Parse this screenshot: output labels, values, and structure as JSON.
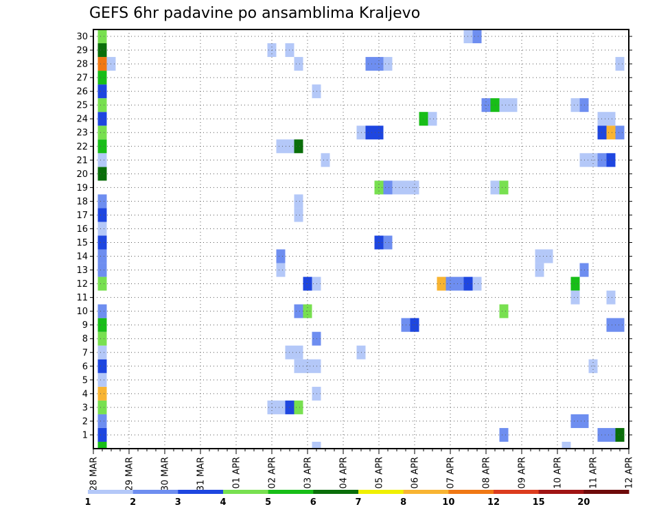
{
  "chart_data": {
    "type": "heatmap",
    "title": "GEFS 6hr padavine po ansamblima Kraljevo",
    "xlabel": "",
    "ylabel": "",
    "x_tick_labels": [
      "28 MAR",
      "29 MAR",
      "30 MAR",
      "31 MAR",
      "01 APR",
      "02 APR",
      "03 APR",
      "04 APR",
      "05 APR",
      "06 APR",
      "07 APR",
      "08 APR",
      "09 APR",
      "10 APR",
      "11 APR",
      "12 APR"
    ],
    "y_tick_labels": [
      "1",
      "2",
      "3",
      "4",
      "5",
      "6",
      "7",
      "8",
      "9",
      "10",
      "11",
      "12",
      "13",
      "14",
      "15",
      "16",
      "17",
      "18",
      "19",
      "20",
      "21",
      "22",
      "23",
      "24",
      "25",
      "26",
      "27",
      "28",
      "29",
      "30"
    ],
    "time_step_hours": 6,
    "grid": true,
    "colorbar": {
      "position": "bottom",
      "colors": [
        "#b4c8f8",
        "#6e8ef0",
        "#1e46e0",
        "#78e050",
        "#18be18",
        "#0a6e0a",
        "#f0f000",
        "#f8b432",
        "#f07814",
        "#dc3c1e",
        "#a01414",
        "#6e0a0a"
      ],
      "labels": [
        "1",
        "2",
        "3",
        "4",
        "5",
        "6",
        "7",
        "8",
        "10",
        "12",
        "15",
        "20"
      ]
    },
    "points": [
      {
        "x": 0.25,
        "y": 0,
        "c": 4
      },
      {
        "x": 0.25,
        "y": 1,
        "c": 2
      },
      {
        "x": 0.25,
        "y": 2,
        "c": 1
      },
      {
        "x": 0.25,
        "y": 3,
        "c": 3
      },
      {
        "x": 0.25,
        "y": 4,
        "c": 7
      },
      {
        "x": 0.25,
        "y": 5,
        "c": 0
      },
      {
        "x": 0.25,
        "y": 6,
        "c": 2
      },
      {
        "x": 0.25,
        "y": 7,
        "c": 0
      },
      {
        "x": 0.25,
        "y": 8,
        "c": 3
      },
      {
        "x": 0.25,
        "y": 9,
        "c": 4
      },
      {
        "x": 0.25,
        "y": 10,
        "c": 1
      },
      {
        "x": 0.25,
        "y": 12,
        "c": 3
      },
      {
        "x": 0.25,
        "y": 13,
        "c": 1
      },
      {
        "x": 0.25,
        "y": 14,
        "c": 1
      },
      {
        "x": 0.25,
        "y": 15,
        "c": 2
      },
      {
        "x": 0.25,
        "y": 16,
        "c": 0
      },
      {
        "x": 0.25,
        "y": 17,
        "c": 2
      },
      {
        "x": 0.25,
        "y": 18,
        "c": 1
      },
      {
        "x": 0.25,
        "y": 20,
        "c": 5
      },
      {
        "x": 0.25,
        "y": 21,
        "c": 0
      },
      {
        "x": 0.25,
        "y": 22,
        "c": 4
      },
      {
        "x": 0.25,
        "y": 23,
        "c": 3
      },
      {
        "x": 0.25,
        "y": 24,
        "c": 2
      },
      {
        "x": 0.25,
        "y": 25,
        "c": 3
      },
      {
        "x": 0.25,
        "y": 26,
        "c": 2
      },
      {
        "x": 0.25,
        "y": 27,
        "c": 4
      },
      {
        "x": 0.25,
        "y": 28,
        "c": 8
      },
      {
        "x": 0.5,
        "y": 28,
        "c": 0
      },
      {
        "x": 0.25,
        "y": 29,
        "c": 5
      },
      {
        "x": 0.25,
        "y": 30,
        "c": 3
      },
      {
        "x": 5.0,
        "y": 3,
        "c": 0
      },
      {
        "x": 5.25,
        "y": 3,
        "c": 0
      },
      {
        "x": 5.5,
        "y": 3,
        "c": 2
      },
      {
        "x": 5.75,
        "y": 3,
        "c": 3
      },
      {
        "x": 5.5,
        "y": 7,
        "c": 0
      },
      {
        "x": 5.75,
        "y": 7,
        "c": 0
      },
      {
        "x": 5.75,
        "y": 6,
        "c": 0
      },
      {
        "x": 6.0,
        "y": 6,
        "c": 0
      },
      {
        "x": 6.25,
        "y": 6,
        "c": 0
      },
      {
        "x": 6.25,
        "y": 4,
        "c": 0
      },
      {
        "x": 6.25,
        "y": 0,
        "c": 0
      },
      {
        "x": 6.25,
        "y": 8,
        "c": 1
      },
      {
        "x": 6.25,
        "y": 26,
        "c": 0
      },
      {
        "x": 5.75,
        "y": 10,
        "c": 1
      },
      {
        "x": 6.0,
        "y": 10,
        "c": 3
      },
      {
        "x": 6.0,
        "y": 12,
        "c": 2
      },
      {
        "x": 6.25,
        "y": 12,
        "c": 0
      },
      {
        "x": 5.25,
        "y": 13,
        "c": 0
      },
      {
        "x": 5.25,
        "y": 14,
        "c": 1
      },
      {
        "x": 5.75,
        "y": 18,
        "c": 0
      },
      {
        "x": 5.75,
        "y": 17,
        "c": 0
      },
      {
        "x": 5.25,
        "y": 22,
        "c": 0
      },
      {
        "x": 5.5,
        "y": 22,
        "c": 0
      },
      {
        "x": 5.75,
        "y": 22,
        "c": 5
      },
      {
        "x": 6.5,
        "y": 21,
        "c": 0
      },
      {
        "x": 5.0,
        "y": 29,
        "c": 0
      },
      {
        "x": 5.5,
        "y": 29,
        "c": 0
      },
      {
        "x": 5.75,
        "y": 28,
        "c": 0
      },
      {
        "x": 7.5,
        "y": 7,
        "c": 0
      },
      {
        "x": 7.5,
        "y": 23,
        "c": 0
      },
      {
        "x": 7.75,
        "y": 23,
        "c": 2
      },
      {
        "x": 8.0,
        "y": 23,
        "c": 2
      },
      {
        "x": 7.75,
        "y": 28,
        "c": 1
      },
      {
        "x": 8.0,
        "y": 28,
        "c": 1
      },
      {
        "x": 8.25,
        "y": 28,
        "c": 0
      },
      {
        "x": 8.0,
        "y": 19,
        "c": 3
      },
      {
        "x": 8.25,
        "y": 19,
        "c": 1
      },
      {
        "x": 8.5,
        "y": 19,
        "c": 0
      },
      {
        "x": 8.0,
        "y": 15,
        "c": 2
      },
      {
        "x": 8.25,
        "y": 15,
        "c": 1
      },
      {
        "x": 8.75,
        "y": 19,
        "c": 0
      },
      {
        "x": 9.0,
        "y": 19,
        "c": 0
      },
      {
        "x": 8.75,
        "y": 9,
        "c": 1
      },
      {
        "x": 9.0,
        "y": 9,
        "c": 2
      },
      {
        "x": 9.25,
        "y": 24,
        "c": 4
      },
      {
        "x": 9.5,
        "y": 24,
        "c": 0
      },
      {
        "x": 9.75,
        "y": 12,
        "c": 7
      },
      {
        "x": 10.0,
        "y": 12,
        "c": 1
      },
      {
        "x": 10.25,
        "y": 12,
        "c": 1
      },
      {
        "x": 10.5,
        "y": 12,
        "c": 2
      },
      {
        "x": 10.75,
        "y": 12,
        "c": 0
      },
      {
        "x": 10.5,
        "y": 30,
        "c": 0
      },
      {
        "x": 10.75,
        "y": 30,
        "c": 1
      },
      {
        "x": 11.0,
        "y": 25,
        "c": 1
      },
      {
        "x": 11.25,
        "y": 25,
        "c": 4
      },
      {
        "x": 11.5,
        "y": 25,
        "c": 0
      },
      {
        "x": 11.75,
        "y": 25,
        "c": 0
      },
      {
        "x": 11.25,
        "y": 19,
        "c": 0
      },
      {
        "x": 11.5,
        "y": 19,
        "c": 3
      },
      {
        "x": 11.5,
        "y": 10,
        "c": 3
      },
      {
        "x": 11.5,
        "y": 1,
        "c": 1
      },
      {
        "x": 12.5,
        "y": 14,
        "c": 0
      },
      {
        "x": 12.75,
        "y": 14,
        "c": 0
      },
      {
        "x": 12.5,
        "y": 13,
        "c": 0
      },
      {
        "x": 13.25,
        "y": 0,
        "c": 0
      },
      {
        "x": 13.5,
        "y": 25,
        "c": 0
      },
      {
        "x": 13.75,
        "y": 25,
        "c": 1
      },
      {
        "x": 13.5,
        "y": 12,
        "c": 4
      },
      {
        "x": 13.5,
        "y": 11,
        "c": 0
      },
      {
        "x": 13.75,
        "y": 13,
        "c": 1
      },
      {
        "x": 13.5,
        "y": 2,
        "c": 1
      },
      {
        "x": 13.75,
        "y": 2,
        "c": 1
      },
      {
        "x": 13.75,
        "y": 21,
        "c": 0
      },
      {
        "x": 14.0,
        "y": 21,
        "c": 0
      },
      {
        "x": 14.25,
        "y": 21,
        "c": 1
      },
      {
        "x": 14.5,
        "y": 21,
        "c": 2
      },
      {
        "x": 14.0,
        "y": 6,
        "c": 0
      },
      {
        "x": 14.25,
        "y": 24,
        "c": 0
      },
      {
        "x": 14.5,
        "y": 24,
        "c": 0
      },
      {
        "x": 14.25,
        "y": 23,
        "c": 2
      },
      {
        "x": 14.5,
        "y": 23,
        "c": 7
      },
      {
        "x": 14.75,
        "y": 23,
        "c": 1
      },
      {
        "x": 14.5,
        "y": 11,
        "c": 0
      },
      {
        "x": 14.5,
        "y": 9,
        "c": 1
      },
      {
        "x": 14.75,
        "y": 9,
        "c": 1
      },
      {
        "x": 14.25,
        "y": 1,
        "c": 1
      },
      {
        "x": 14.5,
        "y": 1,
        "c": 1
      },
      {
        "x": 14.75,
        "y": 1,
        "c": 5
      },
      {
        "x": 14.75,
        "y": 28,
        "c": 0
      }
    ]
  }
}
